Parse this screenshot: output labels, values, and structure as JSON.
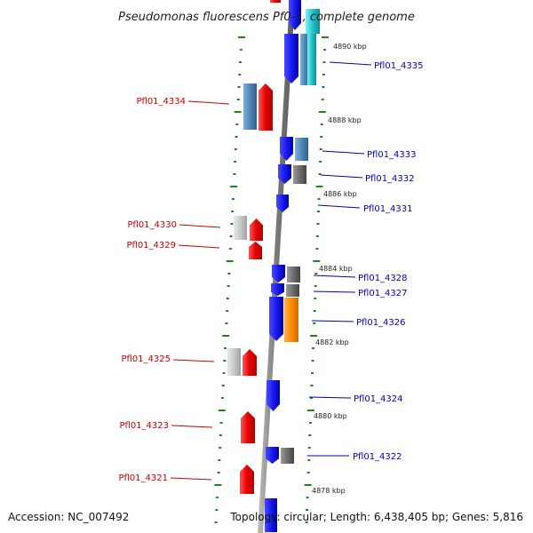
{
  "title": "Pseudomonas fluorescens Pf0-1, complete genome",
  "footer": {
    "accession": "Accession: NC_007492",
    "topology": "Topology: circular; Length: 6,438,405 bp; Genes: 5,816"
  },
  "colors": {
    "plus_strand": "#e60000",
    "minus_strand": "#1a1aee",
    "plus_label": "#cc0000",
    "minus_label": "#0000bb",
    "steelblue": "#4f87b7",
    "gray": "#6d6d6d",
    "lightgray": "#c9c9c9",
    "orange": "#ff8c00",
    "cyan": "#22c4cc",
    "backbone": "#8a8a8a",
    "ticks": "#1a8a1a"
  },
  "kbp_labels": [
    "4890 kbp",
    "4888 kbp",
    "4886 kbp",
    "4884 kbp",
    "4882 kbp",
    "4880 kbp",
    "4878 kbp"
  ],
  "genes_left": [
    {
      "label": "Pfl01_4334"
    },
    {
      "label": "Pfl01_4330"
    },
    {
      "label": "Pfl01_4329"
    },
    {
      "label": "Pfl01_4325"
    },
    {
      "label": "Pfl01_4323"
    },
    {
      "label": "Pfl01_4321"
    }
  ],
  "genes_right": [
    {
      "label": "Pfl01_4335"
    },
    {
      "label": "Pfl01_4333"
    },
    {
      "label": "Pfl01_4332"
    },
    {
      "label": "Pfl01_4331"
    },
    {
      "label": "Pfl01_4328"
    },
    {
      "label": "Pfl01_4327"
    },
    {
      "label": "Pfl01_4326"
    },
    {
      "label": "Pfl01_4324"
    },
    {
      "label": "Pfl01_4322"
    }
  ]
}
